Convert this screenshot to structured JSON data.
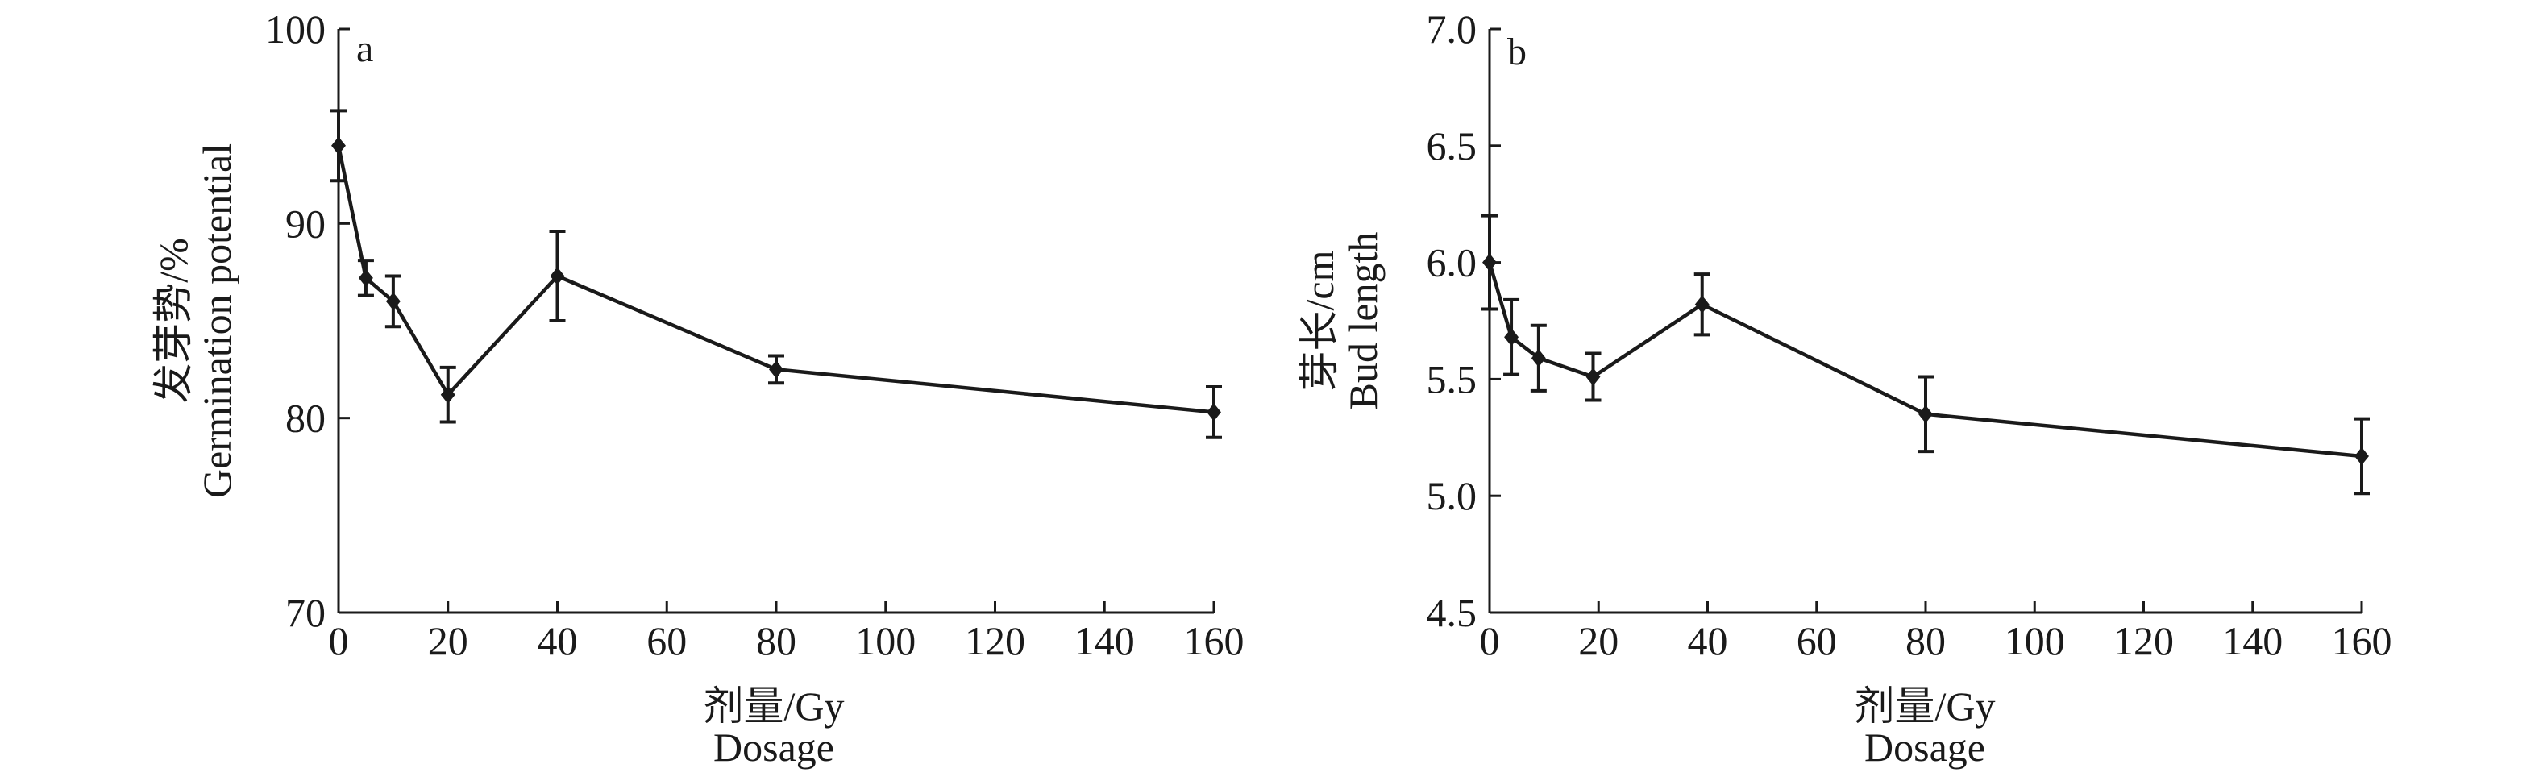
{
  "chart_data": [
    {
      "type": "line",
      "panel_label": "a",
      "xlabel": [
        "剂量/Gy",
        "Dosage"
      ],
      "ylabel": [
        "发芽势/%",
        "Germination potential"
      ],
      "xlim": [
        0,
        160
      ],
      "ylim": [
        70,
        100
      ],
      "x_ticks": [
        0,
        20,
        40,
        60,
        80,
        100,
        120,
        140,
        160
      ],
      "y_ticks": [
        70,
        80,
        90,
        100
      ],
      "x_tick_labels": [
        "0",
        "20",
        "40",
        "60",
        "80",
        "100",
        "120",
        "140",
        "160"
      ],
      "y_tick_labels": [
        "70",
        "80",
        "90",
        "100"
      ],
      "grid": false,
      "series": [
        {
          "x": [
            0,
            5,
            10,
            20,
            40,
            80,
            160
          ],
          "y": [
            94.0,
            87.2,
            86.0,
            81.2,
            87.3,
            82.5,
            80.3
          ],
          "error": [
            1.8,
            0.9,
            1.3,
            1.4,
            2.3,
            0.7,
            1.3
          ]
        }
      ]
    },
    {
      "type": "line",
      "panel_label": "b",
      "xlabel": [
        "剂量/Gy",
        "Dosage"
      ],
      "ylabel": [
        "芽长/cm",
        "Bud length"
      ],
      "xlim": [
        0,
        160
      ],
      "ylim": [
        4.5,
        7.0
      ],
      "x_ticks": [
        0,
        20,
        40,
        60,
        80,
        100,
        120,
        140,
        160
      ],
      "y_ticks": [
        4.5,
        5.0,
        5.5,
        6.0,
        6.5,
        7.0
      ],
      "x_tick_labels": [
        "0",
        "20",
        "40",
        "60",
        "80",
        "100",
        "120",
        "140",
        "160"
      ],
      "y_tick_labels": [
        "4.5",
        "5.0",
        "5.5",
        "6.0",
        "6.5",
        "7.0"
      ],
      "grid": false,
      "series": [
        {
          "x": [
            0,
            4,
            9,
            19,
            39,
            80,
            160
          ],
          "y": [
            6.0,
            5.68,
            5.59,
            5.51,
            5.82,
            5.35,
            5.17
          ],
          "error": [
            0.2,
            0.16,
            0.14,
            0.1,
            0.13,
            0.16,
            0.16
          ]
        }
      ]
    }
  ]
}
